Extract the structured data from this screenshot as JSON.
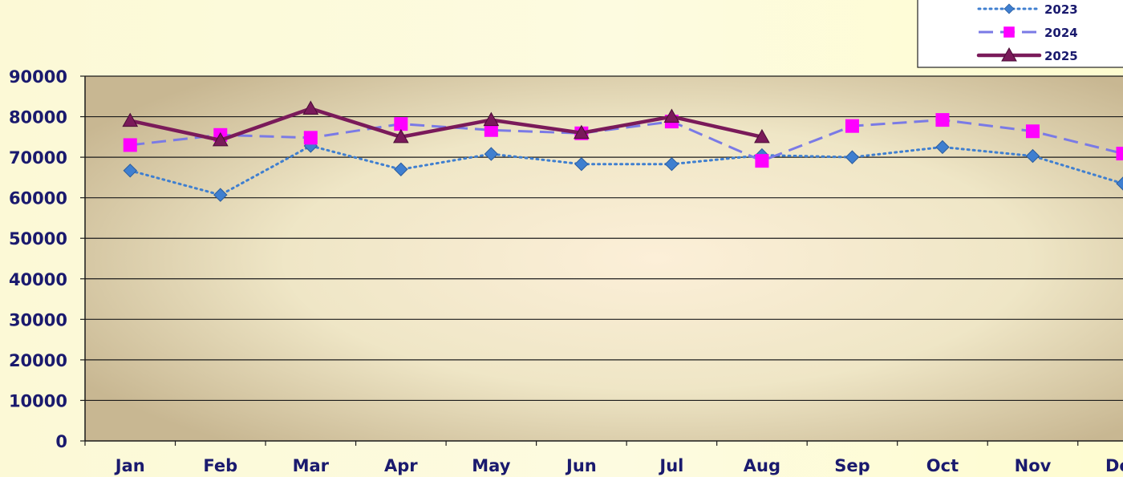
{
  "chart_data": {
    "type": "line",
    "categories": [
      "Jan",
      "Feb",
      "Mar",
      "Apr",
      "May",
      "Jun",
      "Jul",
      "Aug",
      "Sep",
      "Oct",
      "Nov",
      "Dec"
    ],
    "ylim": [
      0,
      90000
    ],
    "yticks": [
      0,
      10000,
      20000,
      30000,
      40000,
      50000,
      60000,
      70000,
      80000,
      90000
    ],
    "grid": true,
    "legend_position": "top-right",
    "series": [
      {
        "name": "2023",
        "color": "#3f7fd0",
        "marker": "diamond",
        "line_style": "dotted",
        "values": [
          66700,
          60700,
          72800,
          67000,
          70800,
          68300,
          68300,
          70500,
          70000,
          72500,
          70300,
          63500
        ]
      },
      {
        "name": "2024",
        "color": "#7a7ae6",
        "marker": "square",
        "marker_color": "#ff00ff",
        "line_style": "dashed",
        "values": [
          73000,
          75500,
          74800,
          78200,
          76700,
          75900,
          78800,
          69100,
          77700,
          79200,
          76400,
          70900
        ]
      },
      {
        "name": "2025",
        "color": "#7a1a5a",
        "marker": "triangle",
        "line_style": "solid",
        "values": [
          79000,
          74200,
          82000,
          75000,
          79200,
          76000,
          80000,
          75000,
          null,
          null,
          null,
          null
        ]
      }
    ]
  }
}
